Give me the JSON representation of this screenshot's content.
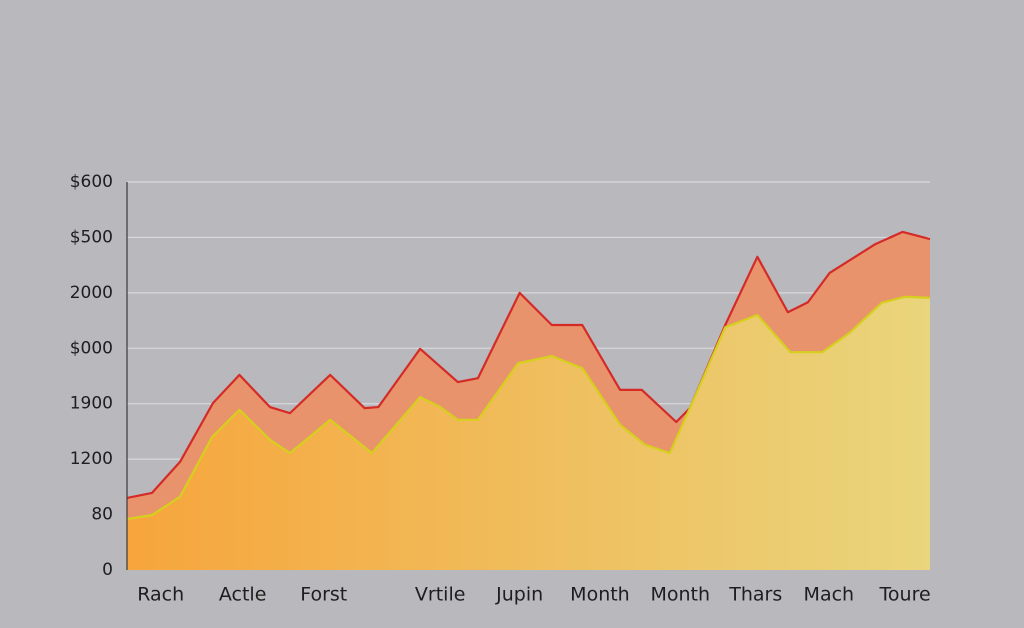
{
  "chart_data": {
    "type": "area",
    "xlim": [
      0,
      100
    ],
    "xticks": [
      {
        "value": 4.2,
        "label": "Rach"
      },
      {
        "value": 14.4,
        "label": "Actle"
      },
      {
        "value": 24.5,
        "label": "Forst"
      },
      {
        "value": 39.0,
        "label": "Vrtile"
      },
      {
        "value": 48.9,
        "label": "Jupin"
      },
      {
        "value": 58.9,
        "label": "Month"
      },
      {
        "value": 68.9,
        "label": "Month"
      },
      {
        "value": 78.3,
        "label": "Thars"
      },
      {
        "value": 87.4,
        "label": "Mach"
      },
      {
        "value": 96.9,
        "label": "Toure"
      }
    ],
    "ylim": [
      0,
      70
    ],
    "yticks": [
      0,
      {
        "value": 10,
        "label": "80"
      },
      {
        "value": 20,
        "label": "1200"
      },
      {
        "value": 30,
        "label": "1900"
      },
      {
        "value": 40,
        "label": "$000"
      },
      {
        "value": 50,
        "label": "2000"
      },
      {
        "value": 60,
        "label": "$500"
      },
      {
        "value": 70,
        "label": "$600"
      }
    ],
    "grid": true,
    "series": [
      {
        "color": "#d42b27",
        "fill": "#e8936c",
        "x": [
          0,
          3.1,
          6.6,
          10.7,
          14.0,
          17.8,
          20.3,
          25.3,
          29.6,
          31.3,
          36.5,
          41.2,
          43.7,
          48.9,
          52.9,
          56.7,
          61.4,
          64.1,
          68.4,
          70.1,
          74.5,
          78.5,
          82.3,
          84.8,
          87.5,
          93.2,
          96.6,
          100
        ],
        "values": [
          13.0,
          13.9,
          19.5,
          30.1,
          35.2,
          29.4,
          28.3,
          35.2,
          29.2,
          29.4,
          39.9,
          33.9,
          34.6,
          50.0,
          44.2,
          44.2,
          32.5,
          32.5,
          26.7,
          29.2,
          44.2,
          56.5,
          46.5,
          48.3,
          53.6,
          58.8,
          61.0,
          59.7
        ]
      },
      {
        "color": "#d6cf1e",
        "fill": [
          "#f7a53c",
          "#e9d57c"
        ],
        "x": [
          0,
          3.1,
          6.6,
          10.6,
          14.0,
          17.8,
          20.3,
          25.3,
          30.5,
          36.5,
          39.0,
          41.2,
          43.7,
          48.7,
          52.9,
          56.7,
          61.4,
          64.5,
          67.6,
          70.1,
          74.5,
          78.5,
          82.6,
          86.6,
          90.0,
          94.0,
          96.9,
          100
        ],
        "values": [
          9.2,
          9.9,
          13.2,
          24.0,
          28.9,
          23.5,
          21.1,
          27.1,
          21.1,
          31.2,
          29.4,
          27.1,
          27.1,
          37.3,
          38.6,
          36.4,
          26.2,
          22.6,
          21.1,
          29.2,
          43.8,
          46.0,
          39.3,
          39.3,
          42.8,
          48.2,
          49.3,
          49.1
        ]
      }
    ]
  }
}
